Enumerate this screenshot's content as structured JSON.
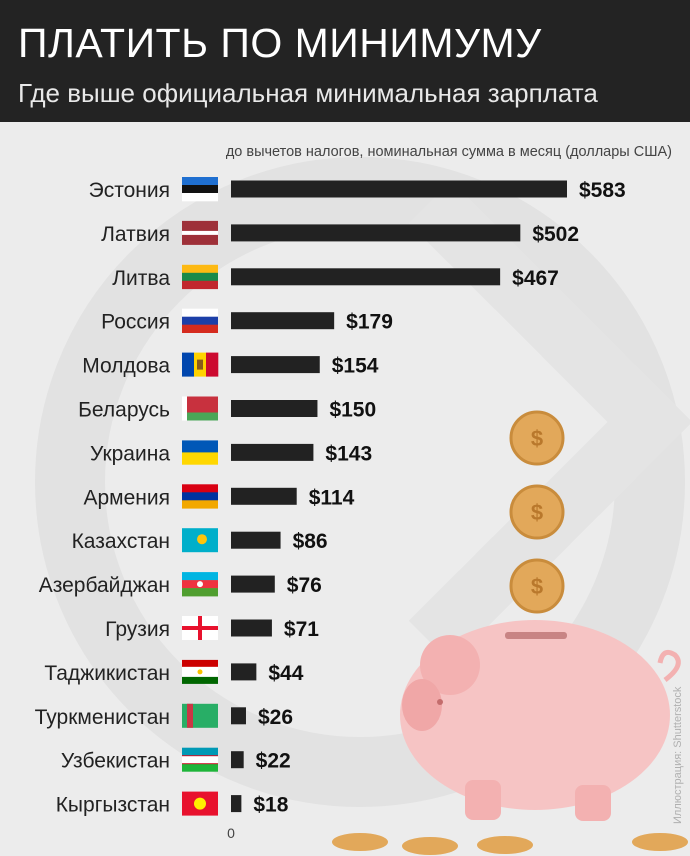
{
  "header": {
    "title": "ПЛАТИТЬ ПО МИНИМУМУ",
    "subtitle": "Где выше официальная минимальная зарплата"
  },
  "note": "до вычетов налогов, номинальная сумма в месяц (доллары США)",
  "credit": "Иллюстрация: Shutterstock",
  "colors": {
    "header_bg": "#232323",
    "bar": "#222222",
    "background": "#ececec",
    "coin": "#e2a85a",
    "piggy": "#f6c4c4"
  },
  "chart_data": {
    "type": "bar",
    "orientation": "horizontal",
    "categories": [
      "Эстония",
      "Латвия",
      "Литва",
      "Россия",
      "Молдова",
      "Беларусь",
      "Украина",
      "Армения",
      "Казахстан",
      "Азербайджан",
      "Грузия",
      "Таджикистан",
      "Туркменистан",
      "Узбекистан",
      "Кыргызстан"
    ],
    "values": [
      583,
      502,
      467,
      179,
      154,
      150,
      143,
      114,
      86,
      76,
      71,
      44,
      26,
      22,
      18
    ],
    "value_labels": [
      "$583",
      "$502",
      "$467",
      "$179",
      "$154",
      "$150",
      "$143",
      "$114",
      "$86",
      "$76",
      "$71",
      "$44",
      "$26",
      "$22",
      "$18"
    ],
    "flags": [
      "estonia-flag",
      "latvia-flag",
      "lithuania-flag",
      "russia-flag",
      "moldova-flag",
      "belarus-flag",
      "ukraine-flag",
      "armenia-flag",
      "kazakhstan-flag",
      "azerbaijan-flag",
      "georgia-flag",
      "tajikistan-flag",
      "turkmenistan-flag",
      "uzbekistan-flag",
      "kyrgyzstan-flag"
    ],
    "axis_zero_label": "0",
    "xlim": [
      0,
      583
    ],
    "grid": false,
    "legend": "none"
  }
}
